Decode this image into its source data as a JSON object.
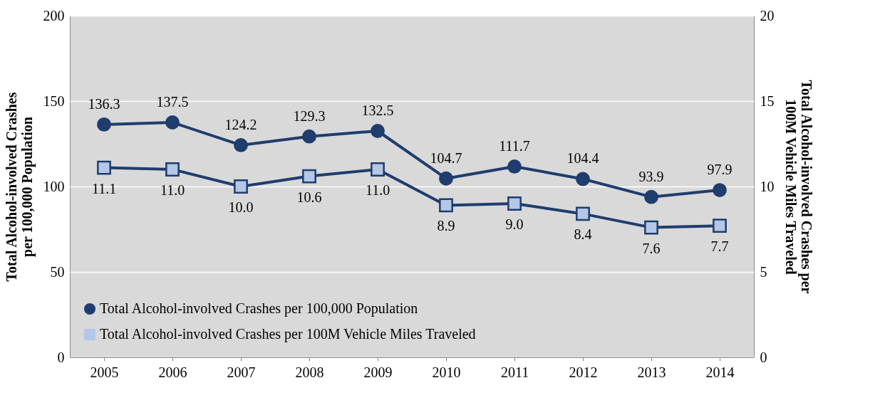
{
  "chart_data": {
    "type": "line",
    "categories": [
      "2005",
      "2006",
      "2007",
      "2008",
      "2009",
      "2010",
      "2011",
      "2012",
      "2013",
      "2014"
    ],
    "ylabel": "Total Alcohol-involved Crashes per 100,000 Population",
    "y2label": "Total Alcohol-involved Crashes per 100M Vehicle Miles Traveled",
    "ylim": [
      0,
      200
    ],
    "yticks": [
      0,
      50,
      100,
      150,
      200
    ],
    "y2lim": [
      0,
      20
    ],
    "y2ticks": [
      0,
      5,
      10,
      15,
      20
    ],
    "grid": "y",
    "legend": "bottom left",
    "series": [
      {
        "name": "Total Alcohol-involved Crashes per 100,000 Population",
        "color": "#1f3d6d",
        "marker": "circle",
        "values": [
          136.3,
          137.5,
          124.2,
          129.3,
          132.5,
          104.7,
          111.7,
          104.4,
          93.9,
          97.9
        ],
        "value_labels": [
          "136.3",
          "137.5",
          "124.2",
          "129.3",
          "132.5",
          "104.7",
          "111.7",
          "104.4",
          "93.9",
          "97.9"
        ]
      },
      {
        "name": "Total Alcohol-involved Crashes per 100M Vehicle Miles Traveled",
        "color": "#1f3d6d",
        "marker": "square",
        "axis": "y2",
        "values": [
          11.1,
          11.0,
          10.0,
          10.6,
          11.0,
          8.9,
          9.0,
          8.4,
          7.6,
          7.7
        ],
        "value_labels": [
          "11.1",
          "11.0",
          "10.0",
          "10.6",
          "11.0",
          "8.9",
          "9.0",
          "8.4",
          "7.6",
          "7.7"
        ]
      }
    ]
  }
}
